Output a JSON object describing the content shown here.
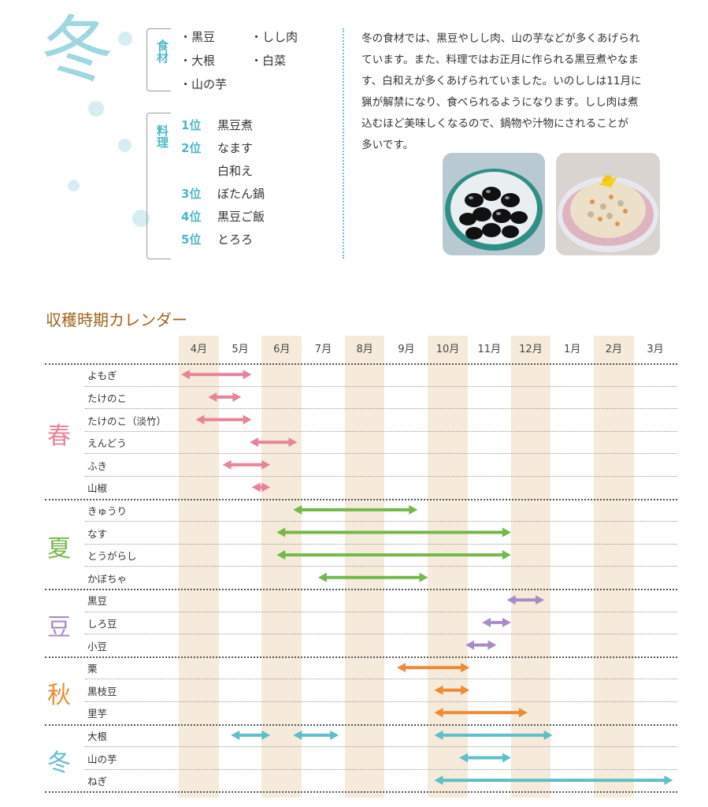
{
  "winter": {
    "season_char": "冬",
    "ingredients_label": "食材",
    "ingredients": [
      "・黒豆",
      "・しし肉",
      "・大根",
      "・白菜",
      "・山の芋"
    ],
    "dishes_label": "料理",
    "rankings": [
      {
        "rank": "1位",
        "dish": "黒豆煮"
      },
      {
        "rank": "2位",
        "dish": "なます"
      },
      {
        "rank": "",
        "dish": "白和え"
      },
      {
        "rank": "3位",
        "dish": "ぼたん鍋"
      },
      {
        "rank": "4位",
        "dish": "黒豆ご飯"
      },
      {
        "rank": "5位",
        "dish": "とろろ"
      }
    ],
    "description_lines": [
      "冬の食材では、黒豆やしし肉、山の芋などが多くあげられ",
      "ています。また、料理ではお正月に作られる黒豆煮やなま",
      "す、白和えが多くあげられていました。いのししは11月に",
      "猟が解禁になり、食べられるようになります。しし肉は煮",
      "込むほど美味しくなるので、鍋物や汁物にされることが",
      "多いです。"
    ]
  },
  "calendar": {
    "title": "収穫時期カレンダー",
    "months": [
      "4月",
      "5月",
      "6月",
      "7月",
      "8月",
      "9月",
      "10月",
      "11月",
      "12月",
      "1月",
      "2月",
      "3月"
    ],
    "shaded_months": [
      0,
      2,
      4,
      6,
      8,
      10
    ],
    "seasons": [
      {
        "name": "春",
        "color": "#e8849a",
        "items": [
          {
            "label": "よもぎ",
            "ranges": [
              [
                0.0,
                1.85
              ]
            ]
          },
          {
            "label": "たけのこ",
            "ranges": [
              [
                0.65,
                1.6
              ]
            ]
          },
          {
            "label": "たけのこ（淡竹）",
            "ranges": [
              [
                0.35,
                1.85
              ]
            ]
          },
          {
            "label": "えんどう",
            "ranges": [
              [
                1.65,
                2.95
              ]
            ]
          },
          {
            "label": "ふき",
            "ranges": [
              [
                1.0,
                2.3
              ]
            ]
          },
          {
            "label": "山椒",
            "ranges": [
              [
                1.7,
                2.3
              ]
            ]
          }
        ]
      },
      {
        "name": "夏",
        "color": "#74b84a",
        "items": [
          {
            "label": "きゅうり",
            "ranges": [
              [
                2.7,
                5.85
              ]
            ]
          },
          {
            "label": "なす",
            "ranges": [
              [
                2.3,
                8.1
              ]
            ]
          },
          {
            "label": "とうがらし",
            "ranges": [
              [
                2.3,
                8.1
              ]
            ]
          },
          {
            "label": "かぼちゃ",
            "ranges": [
              [
                3.3,
                6.1
              ]
            ]
          }
        ]
      },
      {
        "name": "豆",
        "color": "#a98cc6",
        "items": [
          {
            "label": "黒豆",
            "ranges": [
              [
                7.85,
                8.9
              ]
            ]
          },
          {
            "label": "しろ豆",
            "ranges": [
              [
                7.25,
                8.1
              ]
            ]
          },
          {
            "label": "小豆",
            "ranges": [
              [
                6.85,
                7.75
              ]
            ]
          }
        ]
      },
      {
        "name": "秋",
        "color": "#ef8a34",
        "items": [
          {
            "label": "栗",
            "ranges": [
              [
                5.2,
                7.1
              ]
            ]
          },
          {
            "label": "黒枝豆",
            "ranges": [
              [
                6.1,
                7.1
              ]
            ]
          },
          {
            "label": "里芋",
            "ranges": [
              [
                6.1,
                8.5
              ]
            ]
          }
        ]
      },
      {
        "name": "冬",
        "color": "#5fbfc8",
        "items": [
          {
            "label": "大根",
            "ranges": [
              [
                1.2,
                2.3
              ],
              [
                2.7,
                3.95
              ],
              [
                6.1,
                9.1
              ]
            ]
          },
          {
            "label": "山の芋",
            "ranges": [
              [
                6.7,
                8.1
              ]
            ]
          },
          {
            "label": "ねぎ",
            "ranges": [
              [
                6.1,
                12.0
              ]
            ]
          }
        ]
      }
    ]
  }
}
